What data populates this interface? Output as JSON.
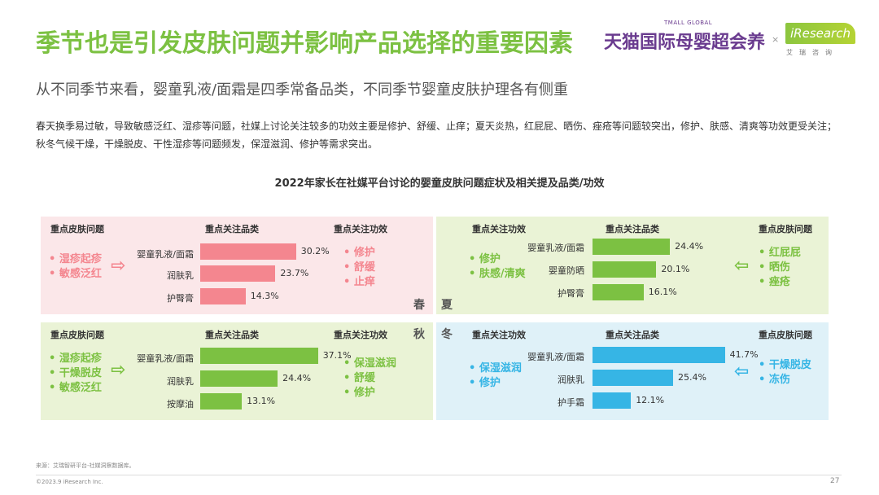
{
  "header": {
    "title": "季节也是引发皮肤问题并影响产品选择的重要因素",
    "brand_tmall": "天猫国际母婴超会养",
    "brand_tmall_sub": "TMALL GLOBAL",
    "brand_x": "×",
    "brand_iresearch": "iResearch",
    "brand_iresearch_cn": "艾瑞咨询"
  },
  "subtitle": "从不同季节来看，婴童乳液/面霜是四季常备品类，不同季节婴童皮肤护理各有侧重",
  "description": "春天换季易过敏，导致敏感泛红、湿疹等问题，社媒上讨论关注较多的功效主要是修护、舒缓、止痒；夏天炎热，红屁屁、晒伤、痤疮等问题较突出，修护、肤感、清爽等功效更受关注；秋冬气候干燥，干燥脱皮、干性湿疹等问题频发，保湿滋润、修护等需求突出。",
  "colors": {
    "spring": "#f4868f",
    "summer": "#7cc142",
    "autumn": "#7cc142",
    "winter": "#36b5e5",
    "title_green": "#7cc142"
  },
  "chart_data": {
    "type": "bar",
    "title": "2022年家长在社媒平台讨论的婴童皮肤问题症状及相关提及品类/功效",
    "unit": "%",
    "headers": {
      "problems": "重点皮肤问题",
      "categories": "重点关注品类",
      "efficacy": "重点关注功效"
    },
    "quadrants": [
      {
        "season": "春",
        "problems": [
          "湿疹起疹",
          "敏感泛红"
        ],
        "categories": [
          "婴童乳液/面霜",
          "润肤乳",
          "护臀膏"
        ],
        "values": [
          30.2,
          23.7,
          14.3
        ],
        "value_labels": [
          "30.2%",
          "23.7%",
          "14.3%"
        ],
        "efficacy": [
          "修护",
          "舒缓",
          "止痒"
        ]
      },
      {
        "season": "夏",
        "problems": [
          "红屁屁",
          "晒伤",
          "痤疮"
        ],
        "categories": [
          "婴童乳液/面霜",
          "婴童防晒",
          "护臀膏"
        ],
        "values": [
          24.4,
          20.1,
          16.1
        ],
        "value_labels": [
          "24.4%",
          "20.1%",
          "16.1%"
        ],
        "efficacy": [
          "修护",
          "肤感/清爽"
        ]
      },
      {
        "season": "秋",
        "problems": [
          "湿疹起疹",
          "干燥脱皮",
          "敏感泛红"
        ],
        "categories": [
          "婴童乳液/面霜",
          "润肤乳",
          "按摩油"
        ],
        "values": [
          37.1,
          24.4,
          13.1
        ],
        "value_labels": [
          "37.1%",
          "24.4%",
          "13.1%"
        ],
        "efficacy": [
          "保湿滋润",
          "舒缓",
          "修护"
        ]
      },
      {
        "season": "冬",
        "problems": [
          "干燥脱皮",
          "冻伤"
        ],
        "categories": [
          "婴童乳液/面霜",
          "润肤乳",
          "护手霜"
        ],
        "values": [
          41.7,
          25.4,
          12.1
        ],
        "value_labels": [
          "41.7%",
          "25.4%",
          "12.1%"
        ],
        "efficacy": [
          "保湿滋润",
          "修护"
        ]
      }
    ]
  },
  "footer": {
    "source": "来源：艾瑞智研平台-社媒洞察数据库。",
    "copyright": "©2023.9 iResearch Inc.",
    "page": "27"
  }
}
